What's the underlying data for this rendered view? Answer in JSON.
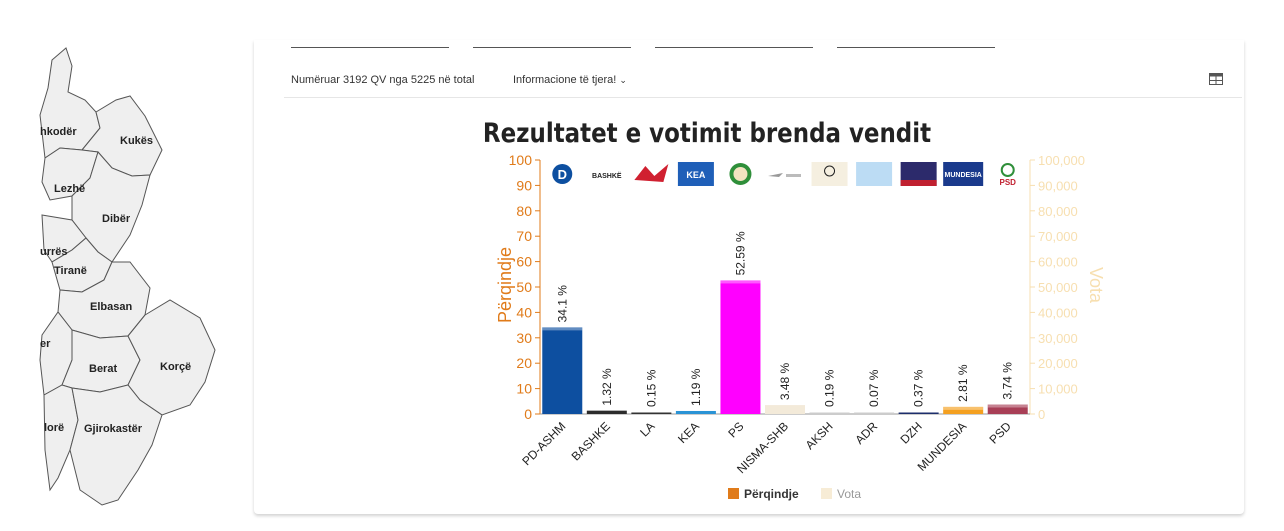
{
  "map": {
    "regions": [
      "hkodër",
      "Kukës",
      "Lezhë",
      "Dibër",
      "urrës",
      "Tiranë",
      "Elbasan",
      "er",
      "Berat",
      "Korçë",
      "lorë",
      "Gjirokastër"
    ]
  },
  "header": {
    "count_text": "Numëruar 3192 QV nga 5225 në total",
    "info_link": "Informacione të tjera!",
    "table_icon": "table-icon"
  },
  "chart_data": {
    "type": "bar",
    "title": "Rezultatet e votimit brenda vendit",
    "ylabel": "Përqindje",
    "y2label": "Vota",
    "ylim": [
      0,
      100
    ],
    "y2lim": [
      0,
      100000
    ],
    "yticks": [
      "0",
      "10",
      "20",
      "30",
      "40",
      "50",
      "60",
      "70",
      "80",
      "90",
      "100"
    ],
    "y2ticks": [
      "0",
      "10,000",
      "20,000",
      "30,000",
      "40,000",
      "50,000",
      "60,000",
      "70,000",
      "80,000",
      "90,000",
      "100,000"
    ],
    "categories": [
      "PD-ASHM",
      "BASHKE",
      "LA",
      "KEA",
      "PS",
      "NISMA-SHB",
      "AKSH",
      "ADR",
      "DZH",
      "MUNDESIA",
      "PSD"
    ],
    "series": [
      {
        "name": "Përqindje",
        "values": [
          34.1,
          1.32,
          0.15,
          1.19,
          52.59,
          3.48,
          0.19,
          0.07,
          0.37,
          2.81,
          3.74
        ]
      },
      {
        "name": "Vota",
        "values": [
          null,
          null,
          null,
          null,
          null,
          3480,
          null,
          null,
          null,
          null,
          null
        ]
      }
    ],
    "data_labels": [
      "34.1 %",
      "1.32 %",
      "0.15 %",
      "1.19 %",
      "52.59 %",
      "3.48 %",
      "0.19 %",
      "0.07 %",
      "0.37 %",
      "2.81 %",
      "3.74 %"
    ],
    "logo_texts": [
      "BASHKË",
      "KEA",
      "MUNDESIA",
      "PSD"
    ],
    "bar_colors": [
      "#0d4fa0",
      "#2c2c2c",
      "#333333",
      "#2a93d5",
      "#ff00ff",
      "#f3ead9",
      "#cccccc",
      "#cccccc",
      "#1c2e6b",
      "#f4a020",
      "#a83f56"
    ],
    "colors": {
      "primary_axis": "#e07b1a",
      "secondary_axis": "#f7dfb0"
    },
    "legend": {
      "position": "bottom",
      "items": [
        "Përqindje",
        "Vota"
      ]
    }
  }
}
